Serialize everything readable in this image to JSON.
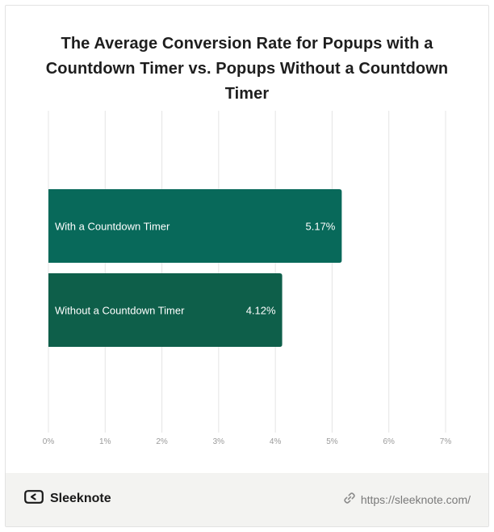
{
  "chart_data": {
    "type": "bar",
    "orientation": "horizontal",
    "title": "The Average Conversion Rate for Popups with a Countdown Timer vs. Popups Without a Countdown Timer",
    "categories": [
      "With a Countdown Timer",
      "Without a Countdown Timer"
    ],
    "values": [
      5.17,
      4.12
    ],
    "value_labels": [
      "5.17%",
      "4.12%"
    ],
    "xlim": [
      0,
      7
    ],
    "x_ticks": [
      "0%",
      "1%",
      "2%",
      "3%",
      "4%",
      "5%",
      "6%",
      "7%"
    ],
    "grid": true,
    "bar_colors": [
      "#08695a",
      "#0e5f4a"
    ]
  },
  "footer": {
    "brand": "Sleeknote",
    "url": "https://sleeknote.com/"
  },
  "icons": {
    "brand": "sleeknote-logo-icon",
    "link": "link-icon"
  }
}
